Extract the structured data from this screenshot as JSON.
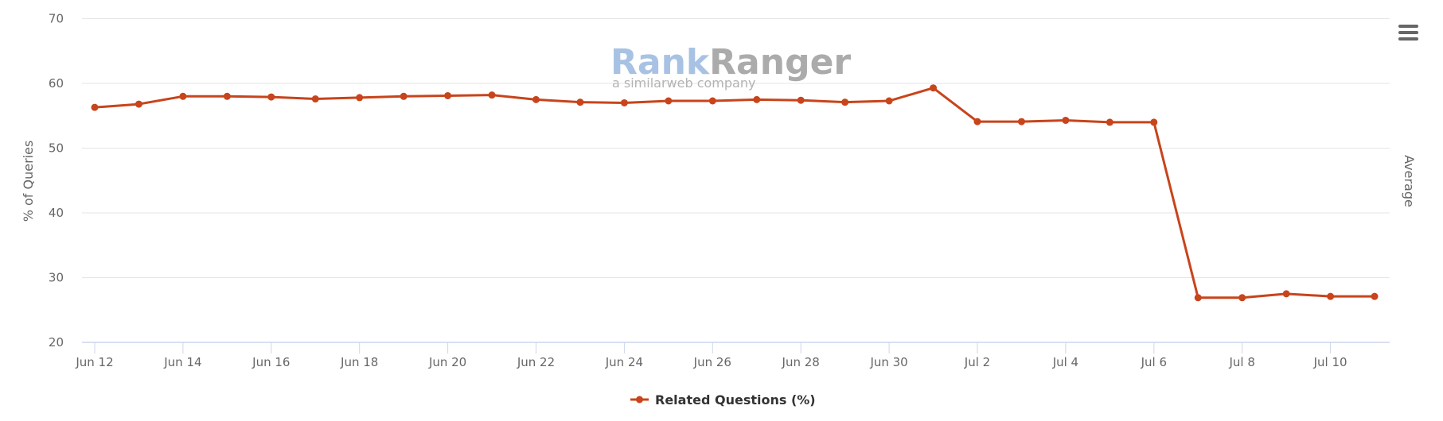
{
  "chart_data": {
    "type": "line",
    "title": "",
    "xlabel": "",
    "ylabel": "% of Queries",
    "ylabel_right": "Average",
    "ylim": [
      20,
      70
    ],
    "yticks": [
      20,
      30,
      40,
      50,
      60,
      70
    ],
    "grid": true,
    "legend_position": "bottom-center",
    "x": [
      "Jun 12",
      "Jun 13",
      "Jun 14",
      "Jun 15",
      "Jun 16",
      "Jun 17",
      "Jun 18",
      "Jun 19",
      "Jun 20",
      "Jun 21",
      "Jun 22",
      "Jun 23",
      "Jun 24",
      "Jun 25",
      "Jun 26",
      "Jun 27",
      "Jun 28",
      "Jun 29",
      "Jun 30",
      "Jul 1",
      "Jul 2",
      "Jul 3",
      "Jul 4",
      "Jul 5",
      "Jul 6",
      "Jul 7",
      "Jul 8",
      "Jul 9",
      "Jul 10",
      "Jul 11"
    ],
    "xtick_labels": [
      "Jun 12",
      "Jun 14",
      "Jun 16",
      "Jun 18",
      "Jun 20",
      "Jun 22",
      "Jun 24",
      "Jun 26",
      "Jun 28",
      "Jun 30",
      "Jul 2",
      "Jul 4",
      "Jul 6",
      "Jul 8",
      "Jul 10"
    ],
    "series": [
      {
        "name": "Related Questions (%)",
        "color": "#c8441b",
        "values": [
          56.3,
          56.8,
          58.0,
          58.0,
          57.9,
          57.6,
          57.8,
          58.0,
          58.1,
          58.2,
          57.5,
          57.1,
          57.0,
          57.3,
          57.3,
          57.5,
          57.4,
          57.1,
          57.3,
          59.3,
          54.1,
          54.1,
          54.3,
          54.0,
          54.0,
          26.9,
          26.9,
          27.5,
          27.1,
          27.1
        ]
      }
    ]
  },
  "watermark": {
    "brand_part1": "Rank",
    "brand_part2": "Ranger",
    "tagline": "a similarweb company"
  },
  "legend": {
    "label": "Related Questions (%)"
  },
  "menu": {
    "icon": "hamburger-menu-icon"
  },
  "colors": {
    "series": "#c8441b",
    "grid": "#e6e6e6",
    "axis": "#ccd6eb",
    "text": "#666666"
  }
}
